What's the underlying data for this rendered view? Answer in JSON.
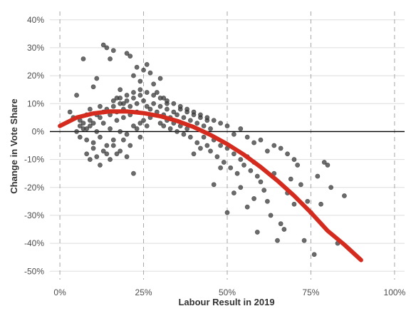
{
  "chart_data": {
    "type": "scatter",
    "title": "",
    "xlabel": "Labour Result in 2019",
    "ylabel": "Change in Vote Share",
    "xlim": [
      -0.03,
      1.03
    ],
    "ylim": [
      -0.53,
      0.43
    ],
    "x_ticks": [
      0,
      0.25,
      0.5,
      0.75,
      1.0
    ],
    "x_tick_labels": [
      "0%",
      "25%",
      "50%",
      "75%",
      "100%"
    ],
    "y_ticks": [
      -0.5,
      -0.4,
      -0.3,
      -0.2,
      -0.1,
      0,
      0.1,
      0.2,
      0.3,
      0.4
    ],
    "y_tick_labels": [
      "-50%",
      "-40%",
      "-30%",
      "-20%",
      "-10%",
      "0%",
      "10%",
      "20%",
      "30%",
      "40%"
    ],
    "grid": "horizontal solid, vertical dashed",
    "zero_line": true,
    "point_color": "#3a3a3a",
    "fit_color": "#d42b1e",
    "points": [
      [
        0.05,
        0.0
      ],
      [
        0.06,
        -0.02
      ],
      [
        0.07,
        0.01
      ],
      [
        0.08,
        -0.03
      ],
      [
        0.09,
        0.02
      ],
      [
        0.1,
        -0.04
      ],
      [
        0.11,
        0.0
      ],
      [
        0.12,
        -0.02
      ],
      [
        0.13,
        0.03
      ],
      [
        0.14,
        -0.05
      ],
      [
        0.15,
        0.01
      ],
      [
        0.16,
        -0.03
      ],
      [
        0.17,
        0.04
      ],
      [
        0.18,
        0.0
      ],
      [
        0.19,
        0.05
      ],
      [
        0.2,
        -0.01
      ],
      [
        0.21,
        0.06
      ],
      [
        0.22,
        0.02
      ],
      [
        0.23,
        0.07
      ],
      [
        0.24,
        0.03
      ],
      [
        0.03,
        0.07
      ],
      [
        0.04,
        0.05
      ],
      [
        0.05,
        0.13
      ],
      [
        0.06,
        0.04
      ],
      [
        0.07,
        0.26
      ],
      [
        0.08,
        0.06
      ],
      [
        0.09,
        0.08
      ],
      [
        0.1,
        0.16
      ],
      [
        0.11,
        0.19
      ],
      [
        0.12,
        0.09
      ],
      [
        0.13,
        0.31
      ],
      [
        0.14,
        0.3
      ],
      [
        0.15,
        0.26
      ],
      [
        0.16,
        0.29
      ],
      [
        0.17,
        0.12
      ],
      [
        0.18,
        0.15
      ],
      [
        0.19,
        0.1
      ],
      [
        0.2,
        0.28
      ],
      [
        0.21,
        0.27
      ],
      [
        0.22,
        0.2
      ],
      [
        0.23,
        0.23
      ],
      [
        0.24,
        0.18
      ],
      [
        0.25,
        0.22
      ],
      [
        0.26,
        0.24
      ],
      [
        0.27,
        0.21
      ],
      [
        0.28,
        0.17
      ],
      [
        0.29,
        0.14
      ],
      [
        0.3,
        0.19
      ],
      [
        0.31,
        0.12
      ],
      [
        0.32,
        0.1
      ],
      [
        0.08,
        -0.08
      ],
      [
        0.09,
        -0.1
      ],
      [
        0.1,
        -0.06
      ],
      [
        0.11,
        -0.09
      ],
      [
        0.12,
        -0.12
      ],
      [
        0.13,
        -0.07
      ],
      [
        0.14,
        -0.08
      ],
      [
        0.15,
        -0.1
      ],
      [
        0.16,
        -0.05
      ],
      [
        0.17,
        -0.08
      ],
      [
        0.18,
        -0.07
      ],
      [
        0.19,
        -0.03
      ],
      [
        0.2,
        -0.09
      ],
      [
        0.21,
        -0.05
      ],
      [
        0.22,
        -0.15
      ],
      [
        0.23,
        0.01
      ],
      [
        0.24,
        -0.02
      ],
      [
        0.25,
        0.04
      ],
      [
        0.26,
        0.02
      ],
      [
        0.27,
        0.05
      ],
      [
        0.06,
        0.02
      ],
      [
        0.07,
        0.03
      ],
      [
        0.08,
        0.01
      ],
      [
        0.09,
        0.04
      ],
      [
        0.1,
        0.03
      ],
      [
        0.11,
        0.06
      ],
      [
        0.12,
        0.05
      ],
      [
        0.13,
        0.07
      ],
      [
        0.14,
        0.08
      ],
      [
        0.15,
        0.06
      ],
      [
        0.16,
        0.09
      ],
      [
        0.17,
        0.07
      ],
      [
        0.18,
        0.1
      ],
      [
        0.19,
        0.08
      ],
      [
        0.2,
        0.11
      ],
      [
        0.21,
        0.09
      ],
      [
        0.22,
        0.12
      ],
      [
        0.23,
        0.1
      ],
      [
        0.24,
        0.13
      ],
      [
        0.25,
        0.11
      ],
      [
        0.26,
        0.09
      ],
      [
        0.27,
        0.08
      ],
      [
        0.28,
        0.1
      ],
      [
        0.29,
        0.07
      ],
      [
        0.3,
        0.09
      ],
      [
        0.31,
        0.06
      ],
      [
        0.32,
        0.08
      ],
      [
        0.33,
        0.05
      ],
      [
        0.34,
        0.07
      ],
      [
        0.35,
        0.06
      ],
      [
        0.36,
        0.08
      ],
      [
        0.37,
        0.05
      ],
      [
        0.38,
        0.07
      ],
      [
        0.39,
        0.04
      ],
      [
        0.4,
        0.06
      ],
      [
        0.41,
        0.03
      ],
      [
        0.42,
        0.05
      ],
      [
        0.43,
        0.02
      ],
      [
        0.44,
        0.04
      ],
      [
        0.45,
        0.01
      ],
      [
        0.3,
        0.03
      ],
      [
        0.31,
        0.02
      ],
      [
        0.32,
        0.04
      ],
      [
        0.33,
        0.01
      ],
      [
        0.34,
        0.03
      ],
      [
        0.35,
        0.0
      ],
      [
        0.36,
        0.02
      ],
      [
        0.37,
        -0.01
      ],
      [
        0.38,
        0.01
      ],
      [
        0.39,
        -0.02
      ],
      [
        0.4,
        -0.08
      ],
      [
        0.41,
        -0.04
      ],
      [
        0.42,
        -0.06
      ],
      [
        0.43,
        -0.02
      ],
      [
        0.44,
        -0.05
      ],
      [
        0.45,
        -0.07
      ],
      [
        0.46,
        -0.03
      ],
      [
        0.47,
        -0.09
      ],
      [
        0.48,
        -0.05
      ],
      [
        0.49,
        -0.11
      ],
      [
        0.5,
        -0.06
      ],
      [
        0.51,
        -0.13
      ],
      [
        0.52,
        -0.08
      ],
      [
        0.53,
        -0.15
      ],
      [
        0.54,
        -0.1
      ],
      [
        0.55,
        -0.12
      ],
      [
        0.56,
        -0.09
      ],
      [
        0.57,
        -0.14
      ],
      [
        0.58,
        -0.11
      ],
      [
        0.59,
        -0.16
      ],
      [
        0.46,
        -0.19
      ],
      [
        0.48,
        -0.13
      ],
      [
        0.5,
        -0.29
      ],
      [
        0.52,
        -0.22
      ],
      [
        0.54,
        -0.2
      ],
      [
        0.56,
        -0.27
      ],
      [
        0.58,
        -0.24
      ],
      [
        0.59,
        -0.36
      ],
      [
        0.6,
        -0.18
      ],
      [
        0.61,
        -0.21
      ],
      [
        0.62,
        -0.25
      ],
      [
        0.63,
        -0.3
      ],
      [
        0.64,
        -0.15
      ],
      [
        0.65,
        -0.39
      ],
      [
        0.66,
        -0.33
      ],
      [
        0.67,
        -0.35
      ],
      [
        0.68,
        -0.22
      ],
      [
        0.69,
        -0.17
      ],
      [
        0.7,
        -0.26
      ],
      [
        0.71,
        -0.12
      ],
      [
        0.72,
        -0.19
      ],
      [
        0.73,
        -0.39
      ],
      [
        0.74,
        -0.25
      ],
      [
        0.75,
        -0.29
      ],
      [
        0.76,
        -0.44
      ],
      [
        0.77,
        -0.16
      ],
      [
        0.78,
        -0.26
      ],
      [
        0.79,
        -0.11
      ],
      [
        0.8,
        -0.12
      ],
      [
        0.81,
        -0.2
      ],
      [
        0.83,
        -0.4
      ],
      [
        0.85,
        -0.23
      ],
      [
        0.7,
        -0.1
      ],
      [
        0.68,
        -0.08
      ],
      [
        0.66,
        -0.06
      ],
      [
        0.64,
        -0.05
      ],
      [
        0.62,
        -0.07
      ],
      [
        0.6,
        -0.03
      ],
      [
        0.58,
        -0.04
      ],
      [
        0.56,
        -0.02
      ],
      [
        0.54,
        0.01
      ],
      [
        0.52,
        -0.01
      ],
      [
        0.5,
        0.02
      ],
      [
        0.48,
        0.03
      ],
      [
        0.46,
        0.04
      ],
      [
        0.44,
        0.05
      ],
      [
        0.42,
        0.06
      ],
      [
        0.4,
        0.07
      ],
      [
        0.38,
        0.08
      ],
      [
        0.36,
        0.09
      ],
      [
        0.34,
        0.1
      ],
      [
        0.32,
        0.11
      ],
      [
        0.3,
        0.12
      ],
      [
        0.28,
        0.13
      ],
      [
        0.26,
        0.14
      ],
      [
        0.24,
        0.15
      ],
      [
        0.22,
        0.14
      ],
      [
        0.2,
        0.13
      ],
      [
        0.18,
        0.12
      ],
      [
        0.16,
        0.11
      ]
    ],
    "fit_curve": [
      [
        0.0,
        0.02
      ],
      [
        0.05,
        0.05
      ],
      [
        0.1,
        0.065
      ],
      [
        0.15,
        0.072
      ],
      [
        0.2,
        0.072
      ],
      [
        0.25,
        0.066
      ],
      [
        0.3,
        0.055
      ],
      [
        0.35,
        0.038
      ],
      [
        0.4,
        0.016
      ],
      [
        0.45,
        -0.012
      ],
      [
        0.5,
        -0.045
      ],
      [
        0.55,
        -0.083
      ],
      [
        0.6,
        -0.127
      ],
      [
        0.65,
        -0.176
      ],
      [
        0.7,
        -0.23
      ],
      [
        0.75,
        -0.29
      ],
      [
        0.8,
        -0.355
      ],
      [
        0.85,
        -0.405
      ],
      [
        0.9,
        -0.46
      ]
    ]
  }
}
